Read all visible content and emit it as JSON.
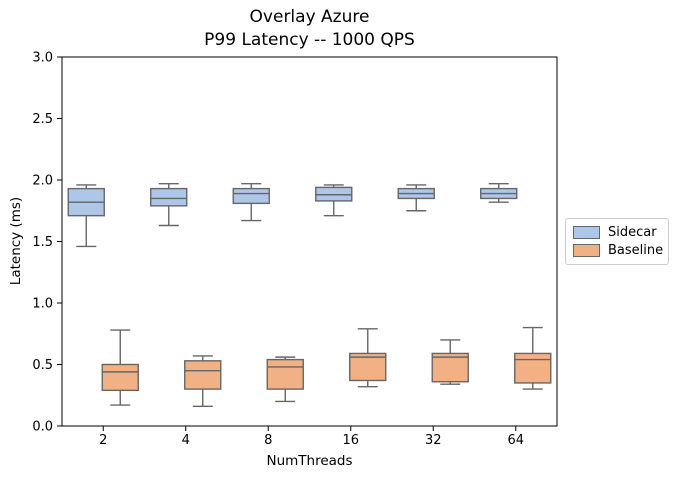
{
  "chart": {
    "title_line1": "Overlay Azure",
    "title_line2": "P99 Latency -- 1000 QPS",
    "xlabel": "NumThreads",
    "ylabel": "Latency (ms)"
  },
  "chart_data": {
    "type": "box",
    "title": "Overlay Azure\nP99 Latency -- 1000 QPS",
    "xlabel": "NumThreads",
    "ylabel": "Latency (ms)",
    "ylim": [
      0.0,
      3.0
    ],
    "y_ticks": [
      0.0,
      0.5,
      1.0,
      1.5,
      2.0,
      2.5,
      3.0
    ],
    "categories": [
      "2",
      "4",
      "8",
      "16",
      "32",
      "64"
    ],
    "grid": false,
    "legend_position": "outside-right",
    "colors": {
      "edge": "#666666",
      "axes_frame": "#000000",
      "legend_border": "#cccccc",
      "background": "#ffffff"
    },
    "series": [
      {
        "name": "Sidecar",
        "color": "#aec7e8",
        "boxes": [
          {
            "whislo": 1.46,
            "q1": 1.71,
            "med": 1.82,
            "q3": 1.93,
            "whishi": 1.96
          },
          {
            "whislo": 1.63,
            "q1": 1.79,
            "med": 1.85,
            "q3": 1.93,
            "whishi": 1.97
          },
          {
            "whislo": 1.67,
            "q1": 1.81,
            "med": 1.89,
            "q3": 1.93,
            "whishi": 1.97
          },
          {
            "whislo": 1.71,
            "q1": 1.83,
            "med": 1.88,
            "q3": 1.94,
            "whishi": 1.96
          },
          {
            "whislo": 1.75,
            "q1": 1.85,
            "med": 1.89,
            "q3": 1.93,
            "whishi": 1.96
          },
          {
            "whislo": 1.82,
            "q1": 1.85,
            "med": 1.89,
            "q3": 1.93,
            "whishi": 1.97
          }
        ]
      },
      {
        "name": "Baseline",
        "color": "#f2b184",
        "boxes": [
          {
            "whislo": 0.17,
            "q1": 0.29,
            "med": 0.44,
            "q3": 0.5,
            "whishi": 0.78
          },
          {
            "whislo": 0.16,
            "q1": 0.3,
            "med": 0.45,
            "q3": 0.53,
            "whishi": 0.57
          },
          {
            "whislo": 0.2,
            "q1": 0.3,
            "med": 0.48,
            "q3": 0.54,
            "whishi": 0.56
          },
          {
            "whislo": 0.32,
            "q1": 0.37,
            "med": 0.56,
            "q3": 0.59,
            "whishi": 0.79
          },
          {
            "whislo": 0.34,
            "q1": 0.36,
            "med": 0.56,
            "q3": 0.59,
            "whishi": 0.7
          },
          {
            "whislo": 0.3,
            "q1": 0.35,
            "med": 0.54,
            "q3": 0.59,
            "whishi": 0.8
          }
        ]
      }
    ]
  }
}
